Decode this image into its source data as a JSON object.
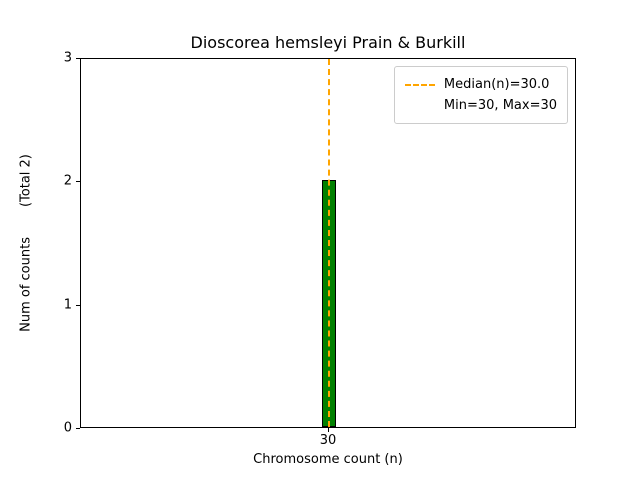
{
  "figure": {
    "title": "Dioscorea hemsleyi Prain & Burkill",
    "xlabel": "Chromosome count (n)",
    "ylabel": "Num of counts",
    "ylabel_total": "(Total 2)"
  },
  "legend": {
    "median_label": "Median(n)=30.0",
    "minmax_label": "Min=30, Max=30"
  },
  "chart_data": {
    "type": "bar",
    "title": "Dioscorea hemsleyi Prain & Burkill",
    "xlabel": "Chromosome count (n)",
    "ylabel": "Num of counts (Total 2)",
    "categories": [
      30
    ],
    "values": [
      2
    ],
    "total": 2,
    "xlim": [
      29.5,
      30.5
    ],
    "ylim": [
      0,
      3
    ],
    "yticks": [
      0,
      1,
      2,
      3
    ],
    "xticks": [
      30
    ],
    "bar_width": 0.03,
    "bar_color": "#008000",
    "bar_edge_color": "#000000",
    "median": 30.0,
    "min": 30,
    "max": 30,
    "median_line_color": "#FFA500",
    "legend_entries": [
      "Median(n)=30.0",
      "Min=30, Max=30"
    ],
    "legend_position": "upper right",
    "grid": false
  }
}
